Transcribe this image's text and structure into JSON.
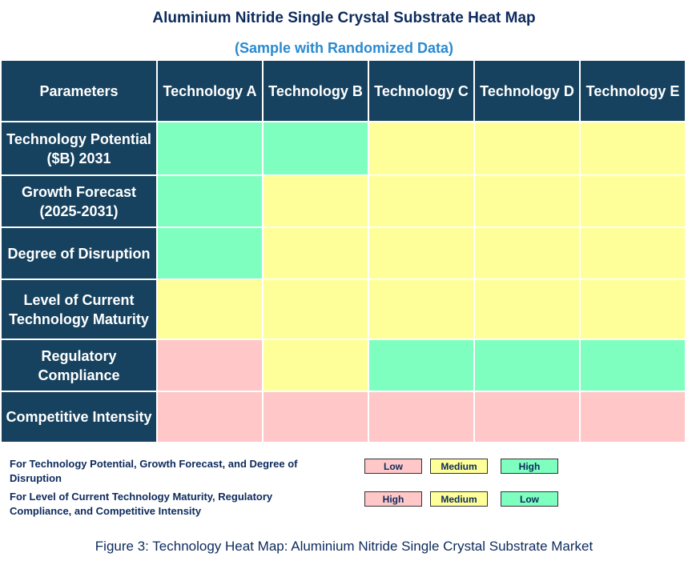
{
  "title": "Aluminium  Nitride Single Crystal Substrate Heat Map",
  "subtitle": "(Sample with Randomized Data)",
  "table": {
    "header": [
      "Parameters",
      "Technology A",
      "Technology B",
      "Technology C",
      "Technology D",
      "Technology E"
    ],
    "rows": [
      {
        "label": "Technology Potential ($B) 2031",
        "cells": [
          "#7fffbf",
          "#7fffbf",
          "#ffff99",
          "#ffff99",
          "#ffff99"
        ]
      },
      {
        "label": "Growth Forecast (2025-2031)",
        "cells": [
          "#7fffbf",
          "#ffff99",
          "#ffff99",
          "#ffff99",
          "#ffff99"
        ]
      },
      {
        "label": "Degree of Disruption",
        "cells": [
          "#7fffbf",
          "#ffff99",
          "#ffff99",
          "#ffff99",
          "#ffff99"
        ]
      },
      {
        "label": "Level of Current Technology Maturity",
        "cells": [
          "#ffff99",
          "#ffff99",
          "#ffff99",
          "#ffff99",
          "#ffff99"
        ]
      },
      {
        "label": "Regulatory Compliance",
        "cells": [
          "#ffc7c7",
          "#ffff99",
          "#7fffbf",
          "#7fffbf",
          "#7fffbf"
        ]
      },
      {
        "label": "Competitive Intensity",
        "cells": [
          "#ffc7c7",
          "#ffc7c7",
          "#ffc7c7",
          "#ffc7c7",
          "#ffc7c7"
        ]
      }
    ]
  },
  "legend": [
    {
      "text": "For Technology Potential, Growth Forecast, and Degree of Disruption",
      "items": [
        {
          "label": "Low",
          "color": "#ffc7c7"
        },
        {
          "label": "Medium",
          "color": "#ffff99"
        },
        {
          "label": "High",
          "color": "#7fffbf"
        }
      ]
    },
    {
      "text": "For Level of Current Technology Maturity, Regulatory Compliance, and Competitive Intensity",
      "items": [
        {
          "label": "High",
          "color": "#ffc7c7"
        },
        {
          "label": "Medium",
          "color": "#ffff99"
        },
        {
          "label": "Low",
          "color": "#7fffbf"
        }
      ]
    }
  ],
  "caption": "Figure 3: Technology Heat Map: Aluminium Nitride Single Crystal Substrate Market"
}
